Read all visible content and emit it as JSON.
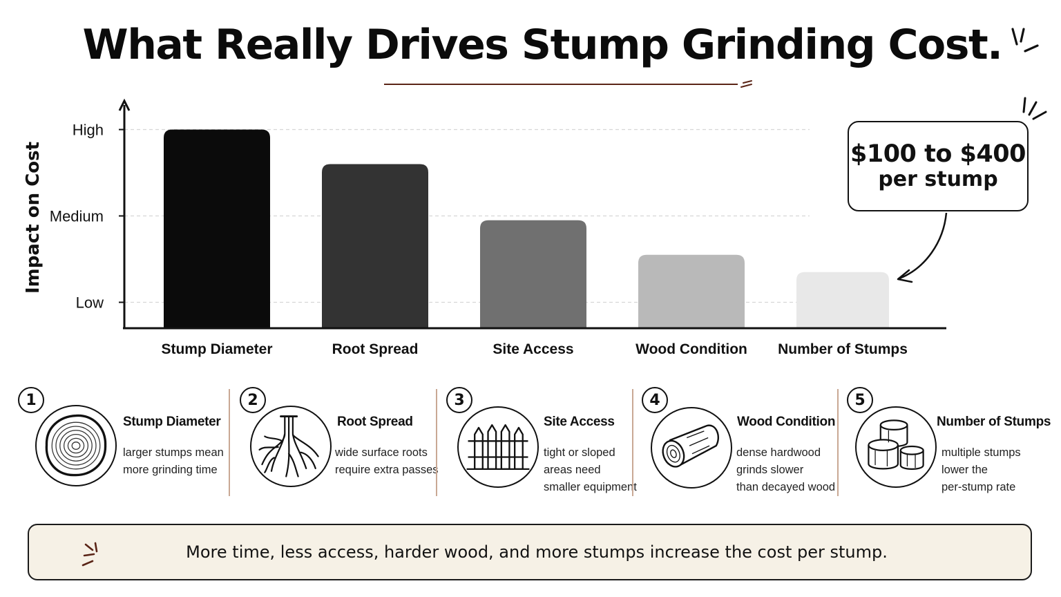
{
  "title": "What Really Drives Stump Grinding Cost.",
  "chart_data": {
    "type": "bar",
    "title": "What Really Drives Stump Grinding Cost.",
    "ylabel": "Impact on Cost",
    "xlabel": "",
    "y_ticks": [
      "Low",
      "Medium",
      "High"
    ],
    "y_tick_values": [
      1,
      2,
      3
    ],
    "ylim": [
      0.7,
      3.3
    ],
    "categories": [
      "Stump Diameter",
      "Root Spread",
      "Site Access",
      "Wood Condition",
      "Number of Stumps"
    ],
    "values": [
      3.0,
      2.6,
      1.95,
      1.55,
      1.35
    ],
    "bar_colors": [
      "#0b0b0b",
      "#333333",
      "#707070",
      "#b9b9b9",
      "#e8e8e8"
    ],
    "grid": "horizontal dashed",
    "legend": "none"
  },
  "callout": {
    "price": "$100 to $400",
    "unit": "per stump"
  },
  "factors": [
    {
      "num": "1",
      "title": "Stump Diameter",
      "icon": "tree-rings-icon",
      "lines": [
        "larger stumps mean",
        "more grinding time"
      ]
    },
    {
      "num": "2",
      "title": "Root Spread",
      "icon": "roots-icon",
      "lines": [
        "wide surface roots",
        "require extra passes"
      ]
    },
    {
      "num": "3",
      "title": "Site Access",
      "icon": "fence-icon",
      "lines": [
        "tight or sloped",
        "areas need",
        "smaller equipment"
      ]
    },
    {
      "num": "4",
      "title": "Wood Condition",
      "icon": "log-icon",
      "lines": [
        "dense hardwood",
        "grinds slower",
        "than decayed wood"
      ]
    },
    {
      "num": "5",
      "title": "Number of Stumps",
      "icon": "stumps-icon",
      "lines": [
        "multiple stumps",
        "lower the",
        "per-stump rate"
      ]
    }
  ],
  "banner": {
    "text": "More time, less access, harder wood, and more stumps increase the cost per stump."
  },
  "colors": {
    "accent": "#5a2416",
    "divider": "#c9a894",
    "banner_bg": "#f6f1e6"
  }
}
